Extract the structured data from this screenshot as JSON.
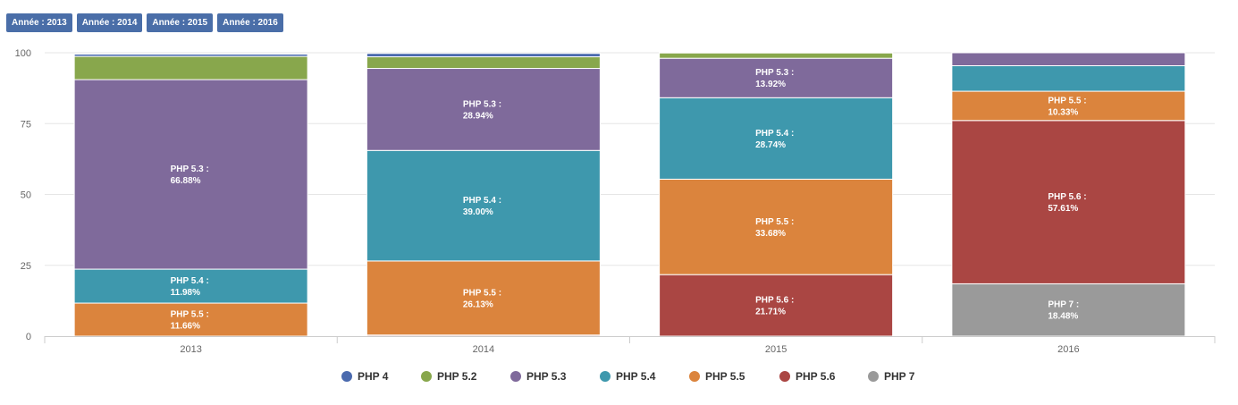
{
  "buttons": [
    {
      "label": "Année : 2013"
    },
    {
      "label": "Année : 2014"
    },
    {
      "label": "Année : 2015"
    },
    {
      "label": "Année : 2016"
    }
  ],
  "chart_data": {
    "type": "bar",
    "stacked": true,
    "categories": [
      "2013",
      "2014",
      "2015",
      "2016"
    ],
    "ylim": [
      0,
      100
    ],
    "yticks": [
      0,
      25,
      50,
      75,
      100
    ],
    "grid": true,
    "legend_position": "bottom",
    "series": [
      {
        "name": "PHP 4",
        "color": "#4a6aae",
        "values": [
          0.8,
          1.2,
          0.3,
          0
        ]
      },
      {
        "name": "PHP 5.2",
        "color": "#88a74c",
        "values": [
          8.2,
          4.1,
          1.9,
          0.3
        ]
      },
      {
        "name": "PHP 5.3",
        "color": "#7f6a9b",
        "values": [
          66.88,
          28.94,
          13.92,
          4.6
        ]
      },
      {
        "name": "PHP 5.4",
        "color": "#3e98ad",
        "values": [
          11.98,
          39.0,
          28.74,
          9.0
        ]
      },
      {
        "name": "PHP 5.5",
        "color": "#db843d",
        "values": [
          11.66,
          26.13,
          33.68,
          10.33
        ]
      },
      {
        "name": "PHP 5.6",
        "color": "#aa4643",
        "values": [
          0,
          0.4,
          21.71,
          57.61
        ]
      },
      {
        "name": "PHP 7",
        "color": "#9a9a9a",
        "values": [
          0,
          0,
          0,
          18.48
        ]
      }
    ],
    "data_labels": [
      {
        "category": "2013",
        "series": "PHP 5.3",
        "line1": "PHP 5.3 :",
        "line2": "66.88%"
      },
      {
        "category": "2013",
        "series": "PHP 5.4",
        "line1": "PHP 5.4 :",
        "line2": "11.98%"
      },
      {
        "category": "2013",
        "series": "PHP 5.5",
        "line1": "PHP 5.5 :",
        "line2": "11.66%"
      },
      {
        "category": "2014",
        "series": "PHP 5.3",
        "line1": "PHP 5.3 :",
        "line2": "28.94%"
      },
      {
        "category": "2014",
        "series": "PHP 5.4",
        "line1": "PHP 5.4 :",
        "line2": "39.00%"
      },
      {
        "category": "2014",
        "series": "PHP 5.5",
        "line1": "PHP 5.5 :",
        "line2": "26.13%"
      },
      {
        "category": "2015",
        "series": "PHP 5.3",
        "line1": "PHP 5.3 :",
        "line2": "13.92%"
      },
      {
        "category": "2015",
        "series": "PHP 5.4",
        "line1": "PHP 5.4 :",
        "line2": "28.74%"
      },
      {
        "category": "2015",
        "series": "PHP 5.5",
        "line1": "PHP 5.5 :",
        "line2": "33.68%"
      },
      {
        "category": "2015",
        "series": "PHP 5.6",
        "line1": "PHP 5.6 :",
        "line2": "21.71%"
      },
      {
        "category": "2016",
        "series": "PHP 5.5",
        "line1": "PHP 5.5 :",
        "line2": "10.33%"
      },
      {
        "category": "2016",
        "series": "PHP 5.6",
        "line1": "PHP 5.6 :",
        "line2": "57.61%"
      },
      {
        "category": "2016",
        "series": "PHP 7",
        "line1": "PHP 7 :",
        "line2": "18.48%"
      }
    ]
  }
}
